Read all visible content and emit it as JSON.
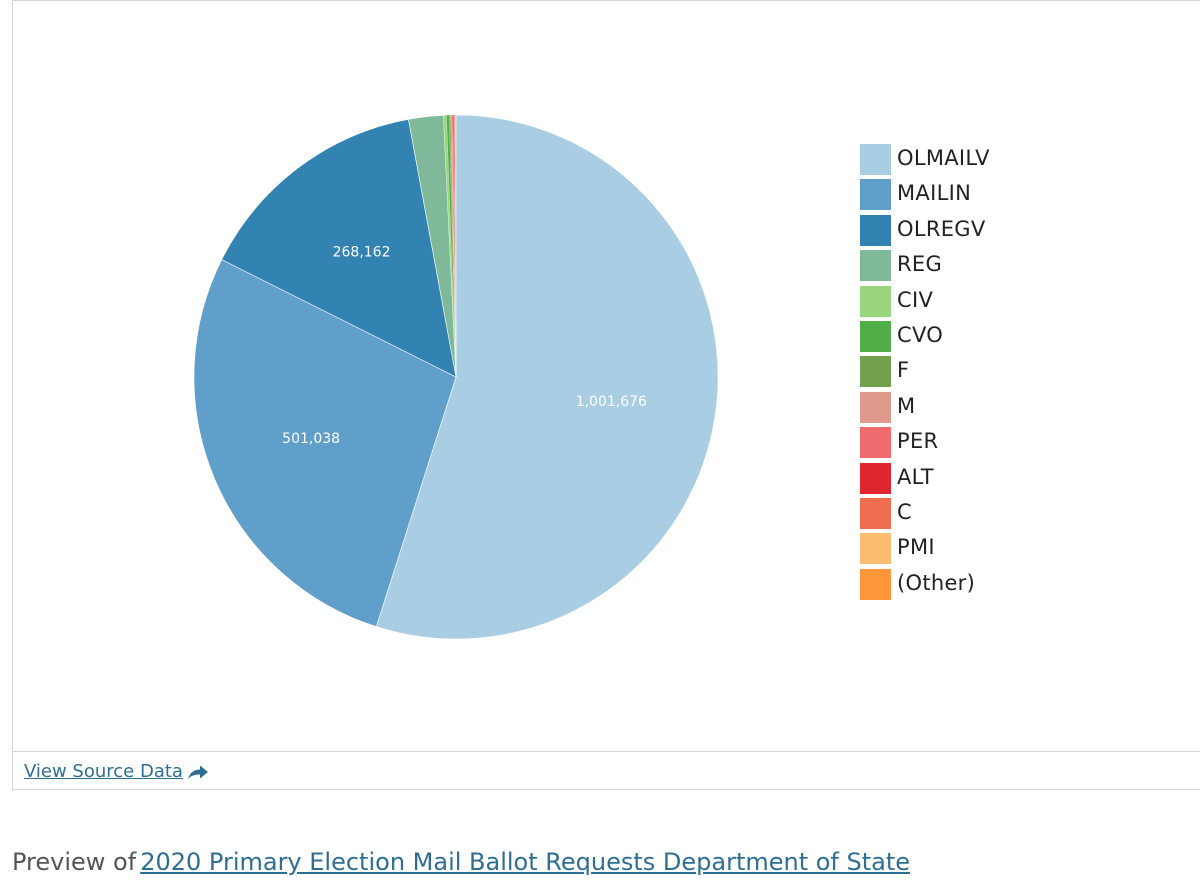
{
  "chart_data": {
    "type": "pie",
    "slices": [
      {
        "label": "OLMAILV",
        "value": 1001676,
        "value_label": "1,001,676",
        "color": "#a9cee3"
      },
      {
        "label": "MAILIN",
        "value": 501038,
        "value_label": "501,038",
        "color": "#5f9fc9"
      },
      {
        "label": "OLREGV",
        "value": 268162,
        "value_label": "268,162",
        "color": "#3283b1"
      },
      {
        "label": "REG",
        "value": 39000,
        "value_label": "",
        "color": "#80b999"
      },
      {
        "label": "CIV",
        "value": 3500,
        "value_label": "",
        "color": "#9ad67e"
      },
      {
        "label": "CVO",
        "value": 3000,
        "value_label": "",
        "color": "#50ad47"
      },
      {
        "label": "F",
        "value": 1500,
        "value_label": "",
        "color": "#73a04e"
      },
      {
        "label": "M",
        "value": 1500,
        "value_label": "",
        "color": "#dd9a8c"
      },
      {
        "label": "PER",
        "value": 1500,
        "value_label": "",
        "color": "#f06b6d"
      },
      {
        "label": "ALT",
        "value": 1000,
        "value_label": "",
        "color": "#e0262f"
      },
      {
        "label": "C",
        "value": 1000,
        "value_label": "",
        "color": "#f06d4f"
      },
      {
        "label": "PMI",
        "value": 500,
        "value_label": "",
        "color": "#fdbd71"
      },
      {
        "label": "(Other)",
        "value": 500,
        "value_label": "",
        "color": "#fd963b"
      }
    ],
    "legend_position": "right"
  },
  "footer": {
    "source_link": "View Source Data",
    "share_icon": "share-arrow-icon"
  },
  "preview": {
    "prefix": "Preview of",
    "link": "2020 Primary Election Mail Ballot Requests Department of State"
  }
}
